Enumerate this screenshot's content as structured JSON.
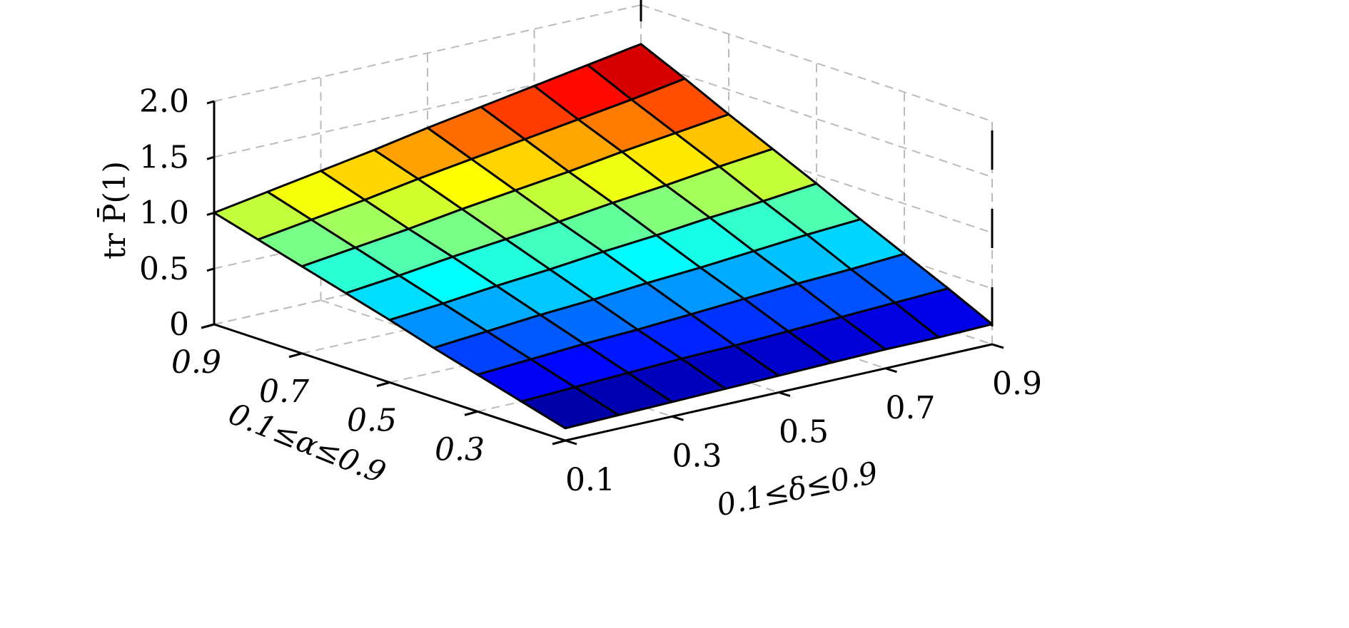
{
  "chart_data": {
    "type": "surface",
    "title": "",
    "xlabel": "0.1≤α≤0.9",
    "ylabel": "0.1≤δ≤0.9",
    "zlabel": "tr P̄(1)",
    "x_name": "alpha",
    "y_name": "delta",
    "x": [
      0.1,
      0.2,
      0.3,
      0.4,
      0.5,
      0.6,
      0.7,
      0.8,
      0.9
    ],
    "y": [
      0.1,
      0.2,
      0.3,
      0.4,
      0.5,
      0.6,
      0.7,
      0.8,
      0.9
    ],
    "z": [
      [
        0.11,
        0.12,
        0.13,
        0.14,
        0.15,
        0.16,
        0.17,
        0.17,
        0.18
      ],
      [
        0.22,
        0.24,
        0.26,
        0.28,
        0.29,
        0.31,
        0.33,
        0.35,
        0.37
      ],
      [
        0.33,
        0.36,
        0.39,
        0.41,
        0.44,
        0.47,
        0.5,
        0.52,
        0.55
      ],
      [
        0.44,
        0.48,
        0.52,
        0.55,
        0.59,
        0.62,
        0.66,
        0.7,
        0.73
      ],
      [
        0.56,
        0.6,
        0.65,
        0.69,
        0.74,
        0.78,
        0.83,
        0.87,
        0.92
      ],
      [
        0.67,
        0.72,
        0.78,
        0.83,
        0.88,
        0.94,
        0.99,
        1.05,
        1.1
      ],
      [
        0.78,
        0.84,
        0.9,
        0.97,
        1.03,
        1.09,
        1.16,
        1.22,
        1.28
      ],
      [
        0.89,
        0.96,
        1.03,
        1.11,
        1.18,
        1.25,
        1.32,
        1.39,
        1.47
      ],
      [
        1.0,
        1.08,
        1.16,
        1.24,
        1.33,
        1.41,
        1.49,
        1.57,
        1.65
      ]
    ],
    "xlim": [
      0.1,
      0.9
    ],
    "ylim": [
      0.1,
      0.9
    ],
    "zlim": [
      0,
      2.0
    ],
    "x_ticks": [
      "0.9",
      "0.7",
      "0.5",
      "0.3"
    ],
    "x_tick_values": [
      0.9,
      0.7,
      0.5,
      0.3
    ],
    "y_ticks": [
      "0.1",
      "0.3",
      "0.5",
      "0.7",
      "0.9"
    ],
    "y_tick_values": [
      0.1,
      0.3,
      0.5,
      0.7,
      0.9
    ],
    "z_ticks": [
      "0",
      "0.5",
      "1.0",
      "1.5",
      "2.0"
    ],
    "z_tick_values": [
      0,
      0.5,
      1.0,
      1.5,
      2.0
    ],
    "colormap": "jet",
    "grid": true,
    "edge_color": "#000000",
    "grid_color": "#bbbbbb"
  }
}
